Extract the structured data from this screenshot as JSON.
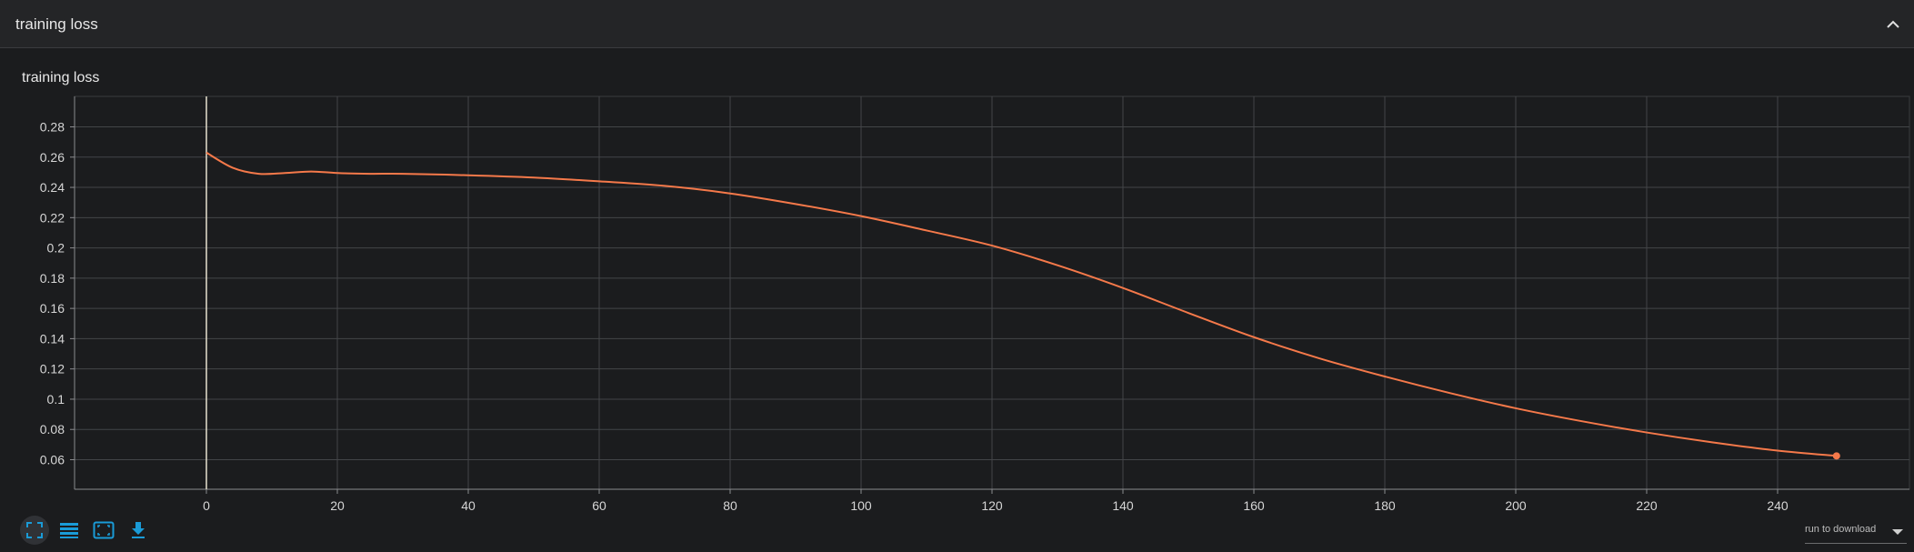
{
  "header": {
    "title": "training loss"
  },
  "icons": {
    "collapse": "chevron-up-icon",
    "fullscreen": "fullscreen-icon",
    "log_scale": "lines-icon",
    "fit_domain": "fit-domain-icon",
    "download": "download-icon"
  },
  "run_select": {
    "label": "run to download"
  },
  "colors": {
    "series": "#f5794a",
    "accent": "#1a9bd7",
    "background": "#1b1c1e"
  },
  "chart_data": {
    "type": "line",
    "title": "training loss",
    "xlabel": "",
    "ylabel": "",
    "xlim": [
      -20,
      250
    ],
    "ylim": [
      0.04,
      0.295
    ],
    "x_ticks": [
      0,
      20,
      40,
      60,
      80,
      100,
      120,
      140,
      160,
      180,
      200,
      220,
      240
    ],
    "y_ticks": [
      0.06,
      0.08,
      0.1,
      0.12,
      0.14,
      0.16,
      0.18,
      0.2,
      0.22,
      0.24,
      0.26,
      0.28
    ],
    "y_tick_labels": [
      "0.06",
      "0.08",
      "0.1",
      "0.12",
      "0.14",
      "0.16",
      "0.18",
      "0.2",
      "0.22",
      "0.24",
      "0.26",
      "0.28"
    ],
    "grid": true,
    "series": [
      {
        "color": "#f5794a",
        "x": [
          0,
          4,
          8,
          12,
          16,
          20,
          25,
          30,
          40,
          50,
          60,
          70,
          80,
          90,
          100,
          110,
          120,
          130,
          140,
          150,
          160,
          170,
          180,
          190,
          200,
          210,
          220,
          230,
          240,
          249
        ],
        "y": [
          0.263,
          0.253,
          0.249,
          0.2495,
          0.2505,
          0.2495,
          0.249,
          0.249,
          0.248,
          0.2465,
          0.244,
          0.241,
          0.236,
          0.229,
          0.221,
          0.2115,
          0.2015,
          0.1885,
          0.1735,
          0.157,
          0.141,
          0.127,
          0.115,
          0.104,
          0.094,
          0.0855,
          0.078,
          0.0715,
          0.066,
          0.0625
        ]
      }
    ]
  }
}
